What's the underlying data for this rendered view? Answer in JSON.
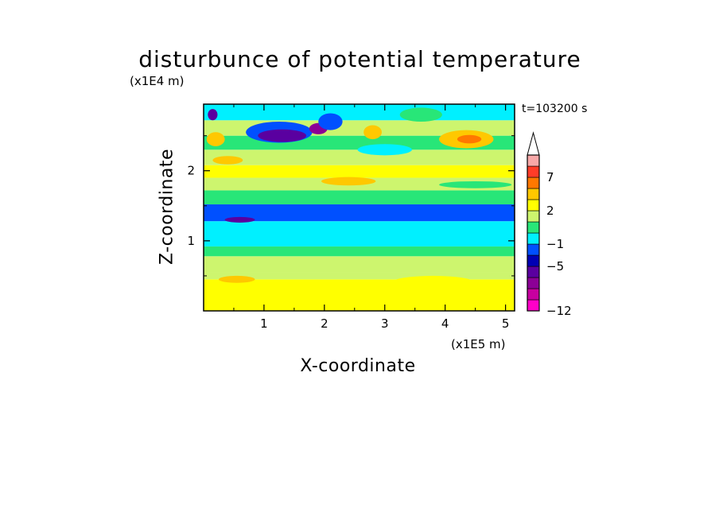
{
  "chart_data": {
    "type": "heatmap",
    "title": "disturbunce of potential temperature",
    "xlabel": "X-coordinate",
    "ylabel": "Z-coordinate",
    "x_unit": "(x1E5 m)",
    "y_unit": "(x1E4 m)",
    "time_label": "t=103200 s",
    "xlim": [
      0,
      5.15
    ],
    "ylim": [
      0,
      2.95
    ],
    "x_ticks": [
      1,
      2,
      3,
      4,
      5
    ],
    "y_ticks": [
      1,
      2
    ],
    "colorbar": {
      "levels": [
        -12,
        -11,
        -9,
        -7,
        -5,
        -3,
        -1,
        0,
        1,
        2,
        3,
        5,
        7,
        9,
        12
      ],
      "labels": [
        "-12",
        "-5",
        "-1",
        "2",
        "7"
      ],
      "label_values": [
        -12,
        -5,
        -1,
        2,
        7
      ],
      "colors": [
        "#ff00c8",
        "#c800a0",
        "#8c0096",
        "#5a00a0",
        "#0000b4",
        "#0050ff",
        "#00f0ff",
        "#28e678",
        "#cdf56e",
        "#ffff00",
        "#ffc800",
        "#ff7800",
        "#ff3c28",
        "#f8a8a8"
      ],
      "extend": "max"
    },
    "bands": [
      {
        "y": [
          0.0,
          0.45
        ],
        "value": 2.5
      },
      {
        "y": [
          0.45,
          0.55
        ],
        "value": 1.5
      },
      {
        "y": [
          0.55,
          0.78
        ],
        "value": 1.5
      },
      {
        "y": [
          0.78,
          0.92
        ],
        "value": 0.5
      },
      {
        "y": [
          0.92,
          1.28
        ],
        "value": -0.5
      },
      {
        "y": [
          1.28,
          1.52
        ],
        "value": -1.5
      },
      {
        "y": [
          1.52,
          1.72
        ],
        "value": 0.5
      },
      {
        "y": [
          1.72,
          1.9
        ],
        "value": 1.5
      },
      {
        "y": [
          1.9,
          2.08
        ],
        "value": 2.5
      },
      {
        "y": [
          2.08,
          2.3
        ],
        "value": 1.5
      },
      {
        "y": [
          2.3,
          2.5
        ],
        "value": 0.5
      },
      {
        "y": [
          2.5,
          2.72
        ],
        "value": 1.5
      },
      {
        "y": [
          2.72,
          2.95
        ],
        "value": -0.5
      }
    ],
    "anomalies": [
      {
        "x": 0.6,
        "y": 1.3,
        "rx": 0.25,
        "ry": 0.04,
        "value": -6
      },
      {
        "x": 1.25,
        "y": 2.55,
        "rx": 0.55,
        "ry": 0.15,
        "value": -3
      },
      {
        "x": 1.3,
        "y": 2.5,
        "rx": 0.4,
        "ry": 0.09,
        "value": -6
      },
      {
        "x": 1.9,
        "y": 2.6,
        "rx": 0.15,
        "ry": 0.08,
        "value": -8
      },
      {
        "x": 2.1,
        "y": 2.7,
        "rx": 0.2,
        "ry": 0.12,
        "value": -3
      },
      {
        "x": 0.15,
        "y": 2.8,
        "rx": 0.08,
        "ry": 0.08,
        "value": -6
      },
      {
        "x": 4.35,
        "y": 2.45,
        "rx": 0.45,
        "ry": 0.13,
        "value": 4
      },
      {
        "x": 4.4,
        "y": 2.45,
        "rx": 0.2,
        "ry": 0.06,
        "value": 6
      },
      {
        "x": 2.8,
        "y": 2.55,
        "rx": 0.15,
        "ry": 0.1,
        "value": 4
      },
      {
        "x": 0.2,
        "y": 2.45,
        "rx": 0.15,
        "ry": 0.1,
        "value": 4
      },
      {
        "x": 0.4,
        "y": 2.15,
        "rx": 0.25,
        "ry": 0.06,
        "value": 4
      },
      {
        "x": 2.4,
        "y": 1.85,
        "rx": 0.45,
        "ry": 0.06,
        "value": 4
      },
      {
        "x": 3.0,
        "y": 2.3,
        "rx": 0.45,
        "ry": 0.08,
        "value": -0.5
      },
      {
        "x": 4.5,
        "y": 1.8,
        "rx": 0.6,
        "ry": 0.05,
        "value": 0.5
      },
      {
        "x": 4.9,
        "y": 2.85,
        "rx": 0.25,
        "ry": 0.12,
        "value": -0.5
      },
      {
        "x": 3.6,
        "y": 2.8,
        "rx": 0.35,
        "ry": 0.1,
        "value": 0.5
      },
      {
        "x": 0.55,
        "y": 0.45,
        "rx": 0.3,
        "ry": 0.05,
        "value": 4
      },
      {
        "x": 1.8,
        "y": 0.3,
        "rx": 0.6,
        "ry": 0.08,
        "value": 2.5
      },
      {
        "x": 3.8,
        "y": 0.4,
        "rx": 0.7,
        "ry": 0.1,
        "value": 2.5
      },
      {
        "x": 2.7,
        "y": 1.05,
        "rx": 1.1,
        "ry": 0.12,
        "value": -0.5
      },
      {
        "x": 2.7,
        "y": 1.4,
        "rx": 0.8,
        "ry": 0.07,
        "value": -1.5
      }
    ]
  }
}
